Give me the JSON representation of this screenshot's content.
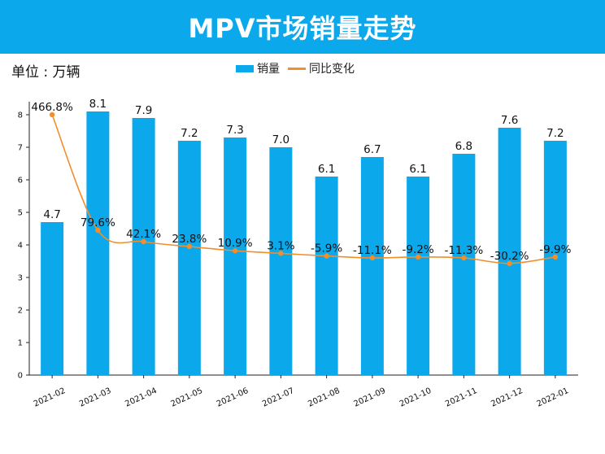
{
  "header": {
    "title": "MPV市场销量走势"
  },
  "unit_label": "单位 : 万辆",
  "legend": {
    "sales_label": "销量",
    "yoy_label": "同比变化"
  },
  "colors": {
    "bar": "#0BA8EC",
    "line": "#F28E2B",
    "title_bg": "#0BA8EC"
  },
  "chart_data": {
    "type": "bar",
    "title": "MPV市场销量走势",
    "ylabel": "单位 : 万辆",
    "xlabel": "",
    "ylim": [
      0,
      8.4
    ],
    "yticks": [
      0,
      1,
      2,
      3,
      4,
      5,
      6,
      7,
      8
    ],
    "categories": [
      "2021-02",
      "2021-03",
      "2021-04",
      "2021-05",
      "2021-06",
      "2021-07",
      "2021-08",
      "2021-09",
      "2021-10",
      "2021-11",
      "2021-12",
      "2022-01"
    ],
    "series": [
      {
        "name": "销量",
        "type": "bar",
        "values": [
          4.7,
          8.1,
          7.9,
          7.2,
          7.3,
          7.0,
          6.1,
          6.7,
          6.1,
          6.8,
          7.6,
          7.2
        ],
        "labels": [
          "4.7",
          "8.1",
          "7.9",
          "7.2",
          "7.3",
          "7.0",
          "6.1",
          "6.7",
          "6.1",
          "6.8",
          "7.6",
          "7.2"
        ]
      },
      {
        "name": "同比变化",
        "type": "line",
        "values": [
          466.8,
          79.6,
          42.1,
          23.8,
          10.9,
          3.1,
          -5.9,
          -11.1,
          -9.2,
          -11.3,
          -30.2,
          -9.9
        ],
        "labels": [
          "466.8%",
          "79.6%",
          "42.1%",
          "23.8%",
          "10.9%",
          "3.1%",
          "-5.9%",
          "-11.1%",
          "-9.2%",
          "-11.3%",
          "-30.2%",
          "-9.9%"
        ],
        "secondary_axis_hidden": true
      }
    ],
    "legend_position": "top-center",
    "grid": false
  }
}
